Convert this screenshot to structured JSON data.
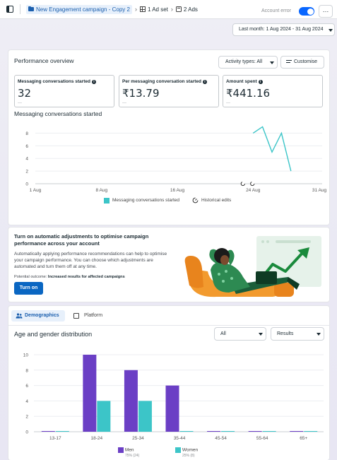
{
  "topbar": {
    "campaign": "New Engagement campaign - Copy 2",
    "adset": "1 Ad set",
    "ads": "2 Ads",
    "account_status": "Account error",
    "more": "…"
  },
  "date_range": "Last month: 1 Aug 2024 - 31 Aug 2024",
  "performance": {
    "title": "Performance overview",
    "activity_label": "Activity types: All",
    "customise_label": "Customise",
    "metrics": [
      {
        "label": "Messaging conversations started",
        "value": "32",
        "sub": "—"
      },
      {
        "label": "Per messaging conversation started",
        "value": "₹13.79",
        "sub": "—"
      },
      {
        "label": "Amount spent",
        "value": "₹441.16",
        "sub": "—"
      }
    ],
    "chart_title": "Messaging conversations started",
    "legend_series": "Messaging conversations started",
    "legend_edits": "Historical edits"
  },
  "chart_data": [
    {
      "type": "line",
      "title": "Messaging conversations started",
      "x": [
        "24 Aug",
        "25 Aug",
        "26 Aug",
        "27 Aug",
        "28 Aug",
        "29 Aug"
      ],
      "x_ticks": [
        "1 Aug",
        "8 Aug",
        "16 Aug",
        "24 Aug",
        "31 Aug"
      ],
      "series": [
        {
          "name": "Messaging conversations started",
          "values": [
            8,
            9,
            5,
            8,
            2,
            null
          ]
        }
      ],
      "y_ticks": [
        "0",
        "2",
        "4",
        "6",
        "8"
      ],
      "ylim": [
        0,
        9.5
      ],
      "grid": true,
      "edit_markers": [
        "23 Aug",
        "24 Aug"
      ],
      "color": "#3cc5c8"
    },
    {
      "type": "bar",
      "title": "Age and gender distribution",
      "categories": [
        "13-17",
        "18-24",
        "25-34",
        "35-44",
        "45-54",
        "55-64",
        "65+"
      ],
      "series": [
        {
          "name": "Men",
          "values": [
            0,
            10,
            8,
            6,
            0,
            0,
            0
          ],
          "color": "#6b3fc5"
        },
        {
          "name": "Women",
          "values": [
            0,
            4,
            4,
            0,
            0,
            0,
            0
          ],
          "color": "#3cc5c8"
        }
      ],
      "y_ticks": [
        "0",
        "2",
        "4",
        "6",
        "8",
        "10"
      ],
      "ylim": [
        0,
        10
      ],
      "grid": true,
      "legend": "bottom"
    }
  ],
  "auto": {
    "title": "Turn on automatic adjustments to optimise campaign performance across your account",
    "body": "Automatically applying performance recommendations can help to optimise your campaign performance. You can choose which adjustments are automated and turn them off at any time.",
    "outcome_prefix": "Potential outcome:",
    "outcome_value": "Increased results for affected campaigns",
    "button": "Turn on"
  },
  "demographics": {
    "tab_demographics": "Demographics",
    "tab_platform": "Platform",
    "title": "Age and gender distribution",
    "select_all": "All",
    "select_results": "Results",
    "legend_men": "Men",
    "legend_men_sub": "75% (24)",
    "legend_women": "Women",
    "legend_women_sub": "25% (8)"
  }
}
